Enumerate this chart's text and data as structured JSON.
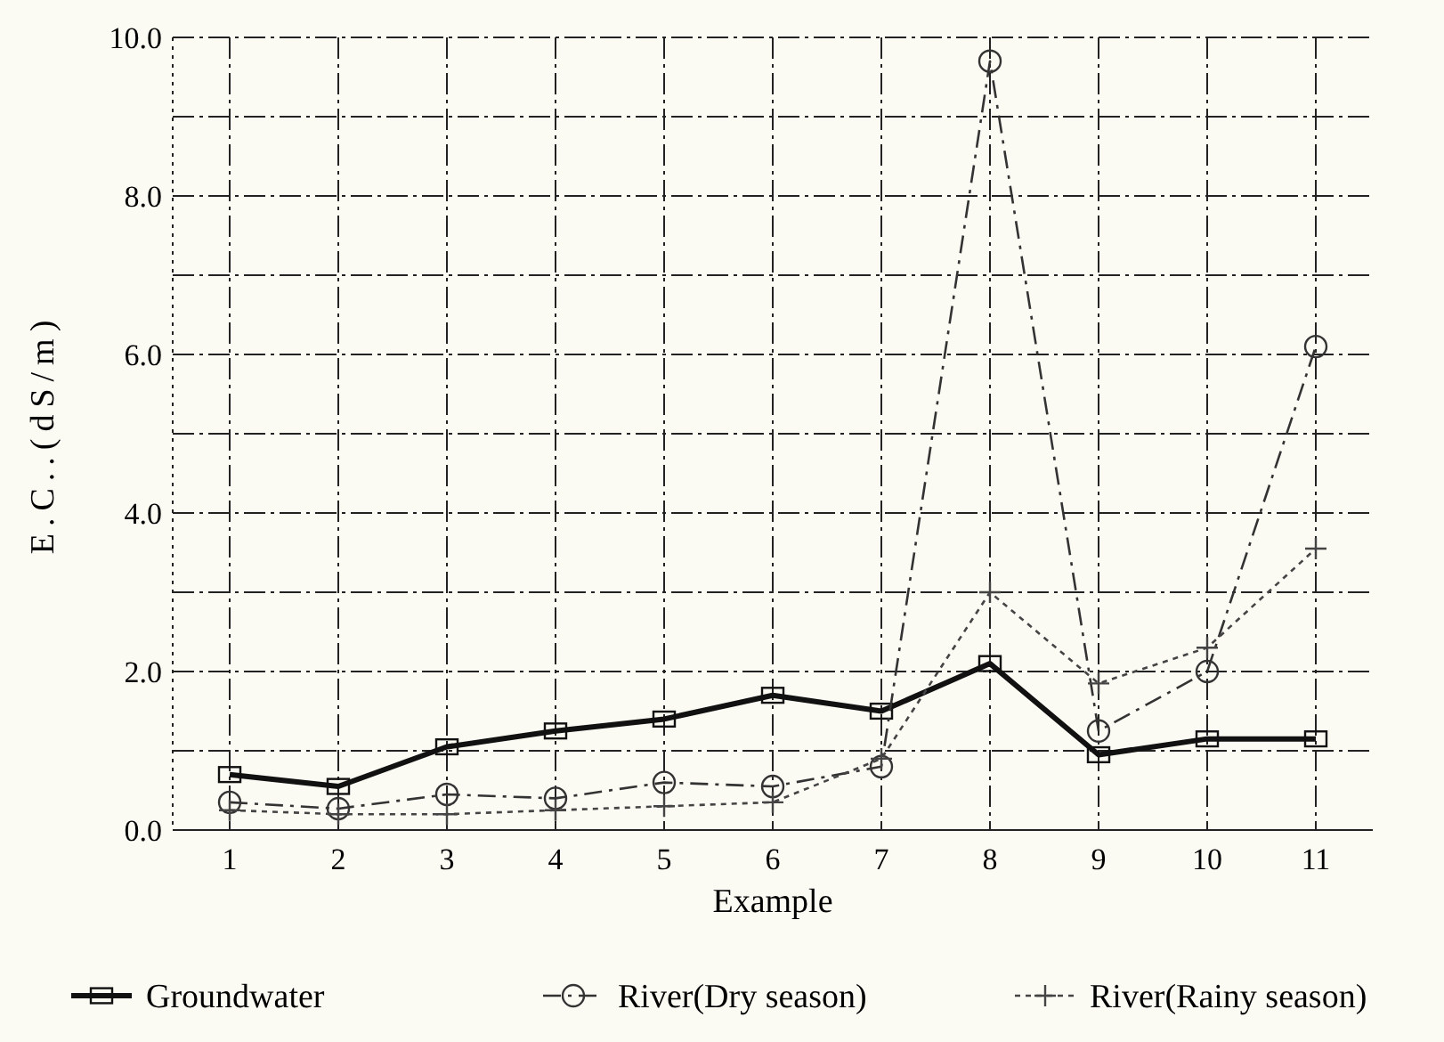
{
  "chart_data": {
    "type": "line",
    "xlabel": "Example",
    "ylabel": "E.C..(dS/m)",
    "categories": [
      "1",
      "2",
      "3",
      "4",
      "5",
      "6",
      "7",
      "8",
      "9",
      "10",
      "11"
    ],
    "ylim": [
      0,
      10
    ],
    "yticks": [
      {
        "value": 0,
        "label": "0.0"
      },
      {
        "value": 1,
        "label": null
      },
      {
        "value": 2,
        "label": "2.0"
      },
      {
        "value": 3,
        "label": null
      },
      {
        "value": 4,
        "label": "4.0"
      },
      {
        "value": 5,
        "label": null
      },
      {
        "value": 6,
        "label": "6.0"
      },
      {
        "value": 7,
        "label": null
      },
      {
        "value": 8,
        "label": "8.0"
      },
      {
        "value": 9,
        "label": null
      },
      {
        "value": 10,
        "label": "10.0"
      }
    ],
    "grid": true,
    "legend": "bottom",
    "series": [
      {
        "name": "Groundwater",
        "color": "#111111",
        "marker": "square",
        "line_style": "solid",
        "values": [
          0.7,
          0.55,
          1.05,
          1.25,
          1.4,
          1.7,
          1.5,
          2.1,
          0.95,
          1.15,
          1.15
        ]
      },
      {
        "name": "River(Dry season)",
        "color": "#333333",
        "marker": "circle",
        "line_style": "dashed",
        "values": [
          0.35,
          0.27,
          0.45,
          0.4,
          0.6,
          0.55,
          0.8,
          9.7,
          1.25,
          2.0,
          6.1
        ]
      },
      {
        "name": "River(Rainy season)",
        "color": "#444444",
        "marker": "cross",
        "line_style": "dotted",
        "values": [
          0.25,
          0.2,
          0.2,
          0.25,
          0.3,
          0.35,
          0.9,
          3.0,
          1.85,
          2.3,
          3.55
        ]
      }
    ]
  }
}
